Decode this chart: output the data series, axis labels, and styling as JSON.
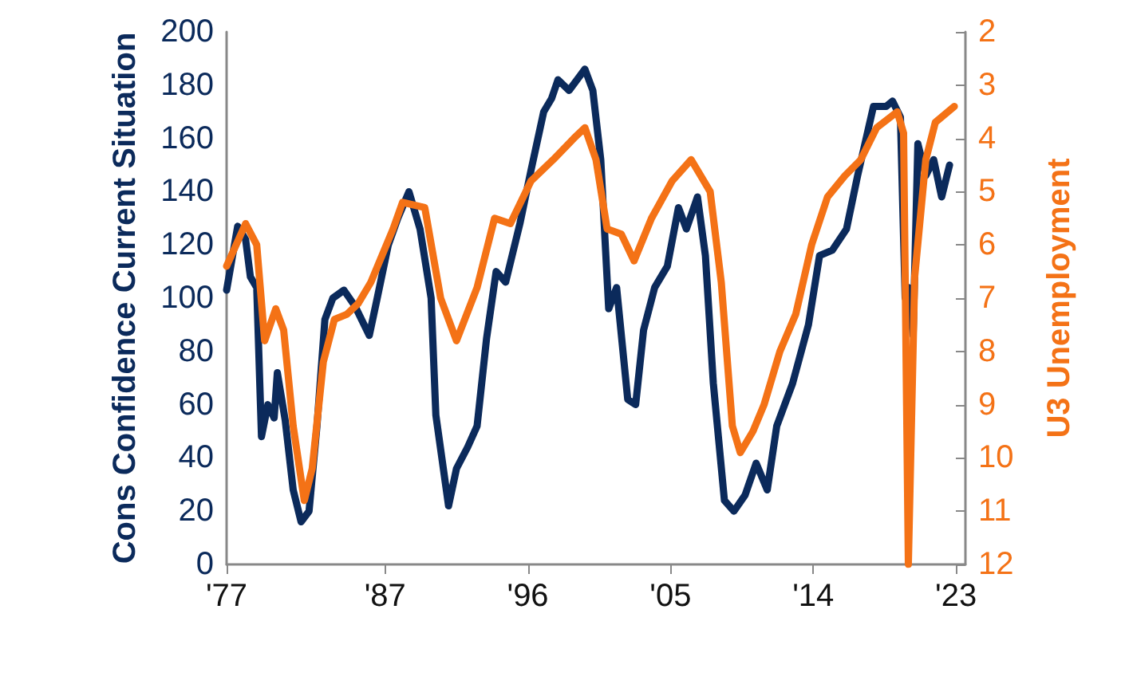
{
  "chart_data": {
    "type": "line",
    "ylabel": "Cons Confidence Current Situation",
    "y2label": "U3 Unemployment",
    "xlim": [
      1977,
      2023.6
    ],
    "xticks": [
      {
        "value": 1977,
        "label": "'77"
      },
      {
        "value": 1987,
        "label": "'87"
      },
      {
        "value": 1996,
        "label": "'96"
      },
      {
        "value": 2005,
        "label": "'05"
      },
      {
        "value": 2014,
        "label": "'14"
      },
      {
        "value": 2023,
        "label": "'23"
      }
    ],
    "ylim": [
      0,
      200
    ],
    "yticks": [
      0,
      20,
      40,
      60,
      80,
      100,
      120,
      140,
      160,
      180,
      200
    ],
    "y2lim": [
      12,
      2
    ],
    "y2ticks": [
      2,
      3,
      4,
      5,
      6,
      7,
      8,
      9,
      10,
      11,
      12
    ],
    "grid": false,
    "marker": "none",
    "line_style": "solid",
    "series": [
      {
        "color": "#0b2a5b",
        "x": [
          1977,
          1977.7,
          1978.2,
          1978.5,
          1978.9,
          1979.2,
          1979.6,
          1980,
          1980.2,
          1980.7,
          1981.2,
          1981.7,
          1982.2,
          1982.7,
          1983.2,
          1983.7,
          1984.4,
          1985.1,
          1986,
          1986.5,
          1987.2,
          1987.8,
          1988.5,
          1989.2,
          1989.9,
          1990.2,
          1991,
          1991.5,
          1992.2,
          1992.8,
          1993.4,
          1994,
          1994.6,
          1995.5,
          1996.2,
          1997,
          1997.5,
          1997.9,
          1998.6,
          1999.6,
          2000.1,
          2000.6,
          2001.1,
          2001.6,
          2002.3,
          2002.8,
          2003.3,
          2004,
          2004.8,
          2005.5,
          2006,
          2006.7,
          2007.2,
          2007.7,
          2008.4,
          2009,
          2009.7,
          2010.4,
          2011.1,
          2011.7,
          2012.7,
          2013.7,
          2014.4,
          2015.2,
          2016.1,
          2016.8,
          2017.8,
          2018.6,
          2019,
          2019.5,
          2019.8,
          2020,
          2020.3,
          2020.6,
          2021.1,
          2021.6,
          2022.1,
          2022.6
        ],
        "values": [
          103,
          127,
          122,
          108,
          104,
          48,
          60,
          55,
          72,
          54,
          28,
          16,
          20,
          52,
          92,
          100,
          103,
          97,
          86,
          100,
          120,
          130,
          140,
          126,
          100,
          56,
          22,
          36,
          44,
          52,
          85,
          110,
          106,
          128,
          148,
          170,
          175,
          182,
          178,
          186,
          178,
          152,
          96,
          104,
          62,
          60,
          88,
          104,
          112,
          134,
          126,
          138,
          116,
          68,
          24,
          20,
          26,
          38,
          28,
          52,
          68,
          90,
          116,
          118,
          126,
          146,
          172,
          172,
          174,
          168,
          100,
          104,
          86,
          158,
          146,
          152,
          138,
          150
        ]
      },
      {
        "color": "#f47216",
        "axis": "y2",
        "x": [
          1977,
          1978.2,
          1978.9,
          1979.4,
          1980.1,
          1980.6,
          1981.2,
          1981.9,
          1982.4,
          1983.1,
          1983.8,
          1984.6,
          1985.3,
          1986.1,
          1987.5,
          1988.1,
          1989.5,
          1990.5,
          1991.5,
          1992.8,
          1993.9,
          1994.9,
          1996.2,
          1997.6,
          1998.9,
          1999.6,
          2000.3,
          2001,
          2001.9,
          2002.7,
          2003.8,
          2005.1,
          2006.3,
          2007.5,
          2008.2,
          2008.9,
          2009.4,
          2010.2,
          2010.9,
          2011.9,
          2012.9,
          2013.9,
          2014.9,
          2016,
          2017,
          2018,
          2019.3,
          2019.7,
          2020,
          2020.4,
          2021.1,
          2021.7,
          2022.9
        ],
        "values": [
          6.4,
          5.6,
          6.0,
          7.8,
          7.2,
          7.6,
          9.4,
          10.8,
          10.2,
          8.2,
          7.4,
          7.3,
          7.1,
          6.7,
          5.7,
          5.2,
          5.3,
          7.0,
          7.8,
          6.8,
          5.5,
          5.6,
          4.8,
          4.4,
          4.0,
          3.8,
          4.4,
          5.7,
          5.8,
          6.3,
          5.5,
          4.8,
          4.4,
          5.0,
          6.7,
          9.4,
          9.9,
          9.5,
          9.0,
          8.0,
          7.3,
          6.0,
          5.1,
          4.7,
          4.4,
          3.8,
          3.5,
          3.9,
          12,
          6.6,
          4.4,
          3.7,
          3.4
        ]
      }
    ]
  }
}
